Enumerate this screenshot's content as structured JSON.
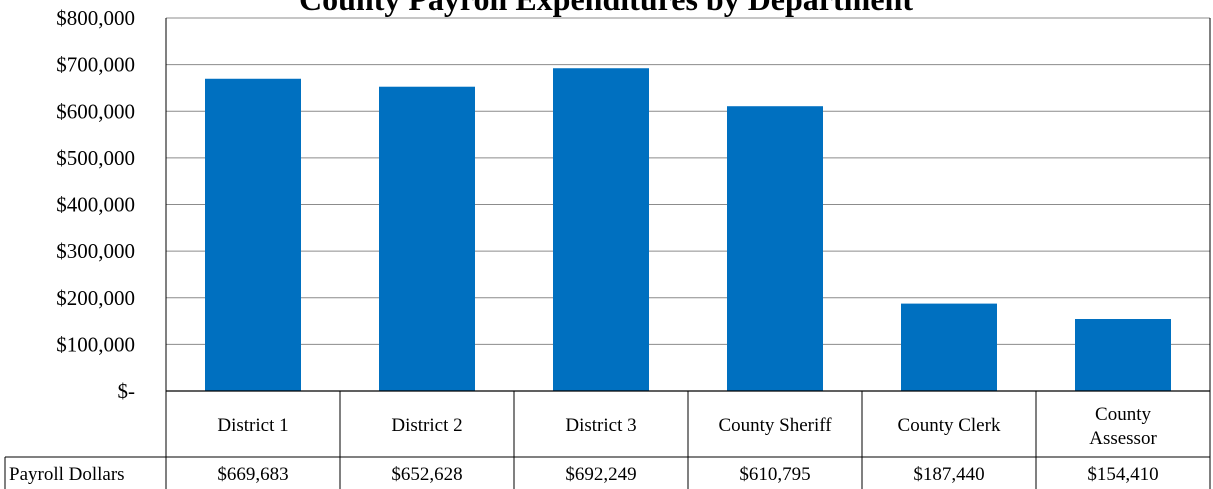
{
  "chart_data": {
    "type": "bar",
    "title": "County Payroll Expenditures by Department",
    "categories": [
      "District 1",
      "District 2",
      "District 3",
      "County Sheriff",
      "County Clerk",
      "County Assessor"
    ],
    "series": [
      {
        "name": "Payroll Dollars",
        "values": [
          669683,
          652628,
          692249,
          610795,
          187440,
          154410
        ],
        "labels": [
          "$669,683",
          "$652,628",
          "$692,249",
          "$610,795",
          "$187,440",
          "$154,410"
        ]
      }
    ],
    "ylim": [
      0,
      800000
    ],
    "yticks": [
      0,
      100000,
      200000,
      300000,
      400000,
      500000,
      600000,
      700000,
      800000
    ],
    "ytick_labels": [
      "$-",
      "$100,000",
      "$200,000",
      "$300,000",
      "$400,000",
      "$500,000",
      "$600,000",
      "$700,000",
      "$800,000"
    ],
    "grid": true,
    "legend": "data-table",
    "bar_color": "#0070C0"
  }
}
